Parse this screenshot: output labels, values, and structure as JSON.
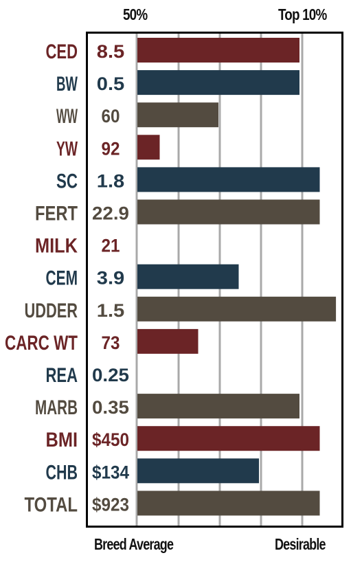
{
  "header": {
    "left": "50%",
    "right": "Top 10%"
  },
  "footer": {
    "left": "Breed Average",
    "right": "Desirable"
  },
  "colors": {
    "red": "#6b2426",
    "blue": "#213a4c",
    "brown": "#534b40",
    "grid": "#a9a9a9"
  },
  "chart_data": {
    "type": "bar",
    "orientation": "horizontal",
    "axis": {
      "min_label": "Breed Average",
      "max_label": "Desirable",
      "top_left_label": "50%",
      "top_right_label": "Top 10%",
      "gridlines": 5
    },
    "rows": [
      {
        "trait": "CED",
        "value": "8.5",
        "bar": 0.8,
        "color": "red"
      },
      {
        "trait": "BW",
        "value": "0.5",
        "bar": 0.8,
        "color": "blue"
      },
      {
        "trait": "WW",
        "value": "60",
        "bar": 0.4,
        "color": "brown"
      },
      {
        "trait": "YW",
        "value": "92",
        "bar": 0.11,
        "color": "red"
      },
      {
        "trait": "SC",
        "value": "1.8",
        "bar": 0.9,
        "color": "blue"
      },
      {
        "trait": "FERT",
        "value": "22.9",
        "bar": 0.9,
        "color": "brown"
      },
      {
        "trait": "MILK",
        "value": "21",
        "bar": 0,
        "color": "red"
      },
      {
        "trait": "CEM",
        "value": "3.9",
        "bar": 0.5,
        "color": "blue"
      },
      {
        "trait": "UDDER",
        "value": "1.5",
        "bar": 0.98,
        "color": "brown"
      },
      {
        "trait": "CARC WT",
        "value": "73",
        "bar": 0.3,
        "color": "red"
      },
      {
        "trait": "REA",
        "value": "0.25",
        "bar": 0,
        "color": "blue"
      },
      {
        "trait": "MARB",
        "value": "0.35",
        "bar": 0.8,
        "color": "brown"
      },
      {
        "trait": "BMI",
        "value": "$450",
        "bar": 0.9,
        "color": "red"
      },
      {
        "trait": "CHB",
        "value": "$134",
        "bar": 0.6,
        "color": "blue"
      },
      {
        "trait": "TOTAL",
        "value": "$923",
        "bar": 0.9,
        "color": "brown"
      }
    ]
  }
}
